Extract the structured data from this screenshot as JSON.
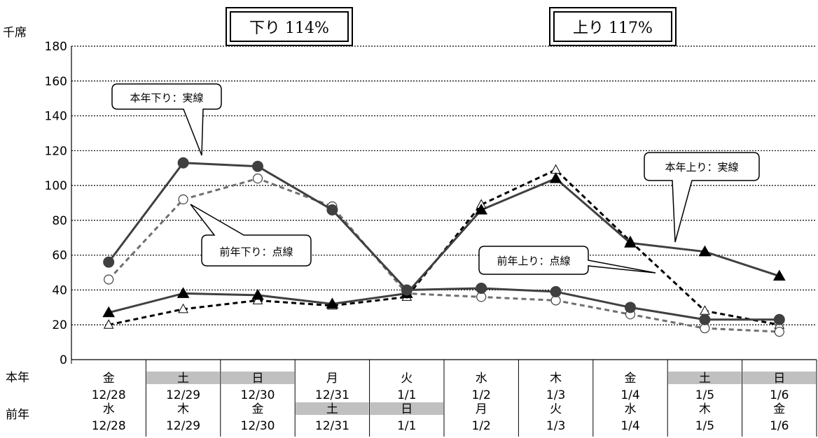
{
  "chart_data": {
    "type": "line",
    "y_unit": "千席",
    "ylim": [
      0,
      180
    ],
    "y_ticks": [
      0,
      20,
      40,
      60,
      80,
      100,
      120,
      140,
      160,
      180
    ],
    "grid": true,
    "grid_style": "dotted",
    "row_headers": {
      "current": "本年",
      "previous": "前年"
    },
    "categories": [
      {
        "current_day": "金",
        "current_date": "12/28",
        "current_holiday": false,
        "previous_day": "水",
        "previous_date": "12/28",
        "previous_holiday": false
      },
      {
        "current_day": "土",
        "current_date": "12/29",
        "current_holiday": true,
        "previous_day": "木",
        "previous_date": "12/29",
        "previous_holiday": false
      },
      {
        "current_day": "日",
        "current_date": "12/30",
        "current_holiday": true,
        "previous_day": "金",
        "previous_date": "12/30",
        "previous_holiday": false
      },
      {
        "current_day": "月",
        "current_date": "12/31",
        "current_holiday": false,
        "previous_day": "土",
        "previous_date": "12/31",
        "previous_holiday": true
      },
      {
        "current_day": "火",
        "current_date": "1/1",
        "current_holiday": false,
        "previous_day": "日",
        "previous_date": "1/1",
        "previous_holiday": true
      },
      {
        "current_day": "水",
        "current_date": "1/2",
        "current_holiday": false,
        "previous_day": "月",
        "previous_date": "1/2",
        "previous_holiday": false
      },
      {
        "current_day": "木",
        "current_date": "1/3",
        "current_holiday": false,
        "previous_day": "火",
        "previous_date": "1/3",
        "previous_holiday": false
      },
      {
        "current_day": "金",
        "current_date": "1/4",
        "current_holiday": false,
        "previous_day": "水",
        "previous_date": "1/4",
        "previous_holiday": false
      },
      {
        "current_day": "土",
        "current_date": "1/5",
        "current_holiday": true,
        "previous_day": "木",
        "previous_date": "1/5",
        "previous_holiday": false
      },
      {
        "current_day": "日",
        "current_date": "1/6",
        "current_holiday": true,
        "previous_day": "金",
        "previous_date": "1/6",
        "previous_holiday": false
      }
    ],
    "series": [
      {
        "key": "down_current",
        "values": [
          56,
          113,
          111,
          86,
          40,
          41,
          39,
          30,
          23,
          23
        ],
        "marker": "circle-filled",
        "line": "solid",
        "color": "#404040"
      },
      {
        "key": "down_previous",
        "values": [
          46,
          92,
          104,
          88,
          38,
          36,
          34,
          26,
          18,
          16
        ],
        "marker": "circle-open",
        "line": "dashed",
        "color": "#707070"
      },
      {
        "key": "up_current",
        "values": [
          27,
          38,
          37,
          32,
          38,
          86,
          104,
          67,
          62,
          48
        ],
        "marker": "triangle-filled",
        "line": "solid",
        "color": "#404040"
      },
      {
        "key": "up_previous",
        "values": [
          20,
          29,
          34,
          31,
          36,
          89,
          109,
          68,
          28,
          20
        ],
        "marker": "triangle-open",
        "line": "dashed",
        "color": "#000000"
      }
    ],
    "annotations": {
      "down_ratio": "下り 114%",
      "up_ratio": "上り 117%",
      "callout_down_current": "本年下り：実線",
      "callout_down_previous": "前年下り：点線",
      "callout_up_current": "本年上り：実線",
      "callout_up_previous": "前年上り：点線"
    },
    "colors": {
      "holiday_shade": "#c0c0c0",
      "grid": "#000000"
    }
  }
}
